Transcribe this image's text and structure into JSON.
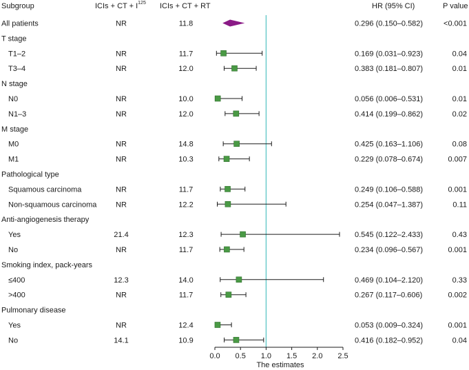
{
  "chart_data": {
    "type": "forest",
    "headers": {
      "subgroup": "Subgroup",
      "arm1": "ICIs + CT + I",
      "arm1_sup": "125",
      "arm2": "ICIs + CT + RT",
      "hr": "HR (95% CI)",
      "p": "P value"
    },
    "xlabel": "The estimates",
    "xlim": [
      0,
      2.5
    ],
    "xticks": [
      "0.0",
      "0.5",
      "1.0",
      "1.5",
      "2.0",
      "2.5"
    ],
    "reference_line": 1.0,
    "rows": [
      {
        "label": "All patients",
        "group": false,
        "arm1": "NR",
        "arm2": "11.8",
        "hr": 0.296,
        "lo": 0.15,
        "hi": 0.582,
        "hr_text": "0.296 (0.150–0.582)",
        "p": "<0.001",
        "overall": true
      },
      {
        "label": "T stage",
        "group": true
      },
      {
        "label": "T1–2",
        "group": false,
        "arm1": "NR",
        "arm2": "11.7",
        "hr": 0.169,
        "lo": 0.031,
        "hi": 0.923,
        "hr_text": "0.169 (0.031–0.923)",
        "p": "0.04"
      },
      {
        "label": "T3–4",
        "group": false,
        "arm1": "NR",
        "arm2": "12.0",
        "hr": 0.383,
        "lo": 0.181,
        "hi": 0.807,
        "hr_text": "0.383 (0.181–0.807)",
        "p": "0.01"
      },
      {
        "label": "N stage",
        "group": true
      },
      {
        "label": "N0",
        "group": false,
        "arm1": "NR",
        "arm2": "10.0",
        "hr": 0.056,
        "lo": 0.006,
        "hi": 0.531,
        "hr_text": "0.056 (0.006–0.531)",
        "p": "0.01"
      },
      {
        "label": "N1–3",
        "group": false,
        "arm1": "NR",
        "arm2": "12.0",
        "hr": 0.414,
        "lo": 0.199,
        "hi": 0.862,
        "hr_text": "0.414 (0.199–0.862)",
        "p": "0.02"
      },
      {
        "label": "M stage",
        "group": true
      },
      {
        "label": "M0",
        "group": false,
        "arm1": "NR",
        "arm2": "14.8",
        "hr": 0.425,
        "lo": 0.163,
        "hi": 1.106,
        "hr_text": "0.425 (0.163–1.106)",
        "p": "0.08"
      },
      {
        "label": "M1",
        "group": false,
        "arm1": "NR",
        "arm2": "10.3",
        "hr": 0.229,
        "lo": 0.078,
        "hi": 0.674,
        "hr_text": "0.229 (0.078–0.674)",
        "p": "0.007"
      },
      {
        "label": "Pathological type",
        "group": true
      },
      {
        "label": "Squamous carcinoma",
        "group": false,
        "arm1": "NR",
        "arm2": "11.7",
        "hr": 0.249,
        "lo": 0.106,
        "hi": 0.588,
        "hr_text": "0.249 (0.106–0.588)",
        "p": "0.001"
      },
      {
        "label": "Non-squamous carcinoma",
        "group": false,
        "arm1": "NR",
        "arm2": "12.2",
        "hr": 0.254,
        "lo": 0.047,
        "hi": 1.387,
        "hr_text": "0.254 (0.047–1.387)",
        "p": "0.11"
      },
      {
        "label": "Anti-angiogenesis therapy",
        "group": true
      },
      {
        "label": "Yes",
        "group": false,
        "arm1": "21.4",
        "arm2": "12.3",
        "hr": 0.545,
        "lo": 0.122,
        "hi": 2.433,
        "hr_text": "0.545 (0.122–2.433)",
        "p": "0.43"
      },
      {
        "label": "No",
        "group": false,
        "arm1": "NR",
        "arm2": "11.7",
        "hr": 0.234,
        "lo": 0.096,
        "hi": 0.567,
        "hr_text": "0.234 (0.096–0.567)",
        "p": "0.001"
      },
      {
        "label": "Smoking index, pack-years",
        "group": true
      },
      {
        "label": "≤400",
        "group": false,
        "arm1": "12.3",
        "arm2": "14.0",
        "hr": 0.469,
        "lo": 0.104,
        "hi": 2.12,
        "hr_text": "0.469 (0.104–2.120)",
        "p": "0.33"
      },
      {
        "label": ">400",
        "group": false,
        "arm1": "NR",
        "arm2": "11.7",
        "hr": 0.267,
        "lo": 0.117,
        "hi": 0.606,
        "hr_text": "0.267 (0.117–0.606)",
        "p": "0.002"
      },
      {
        "label": "Pulmonary disease",
        "group": true
      },
      {
        "label": "Yes",
        "group": false,
        "arm1": "NR",
        "arm2": "12.4",
        "hr": 0.053,
        "lo": 0.009,
        "hi": 0.324,
        "hr_text": "0.053 (0.009–0.324)",
        "p": "0.001"
      },
      {
        "label": "No",
        "group": false,
        "arm1": "14.1",
        "arm2": "10.9",
        "hr": 0.416,
        "lo": 0.182,
        "hi": 0.952,
        "hr_text": "0.416 (0.182–0.952)",
        "p": "0.04"
      }
    ],
    "colors": {
      "square": "#4a9a45",
      "square_edge": "#2f6e2c",
      "diamond": "#8a1a86",
      "ref_line": "#5cc6c6",
      "ci_line": "#1a1a1a"
    }
  }
}
